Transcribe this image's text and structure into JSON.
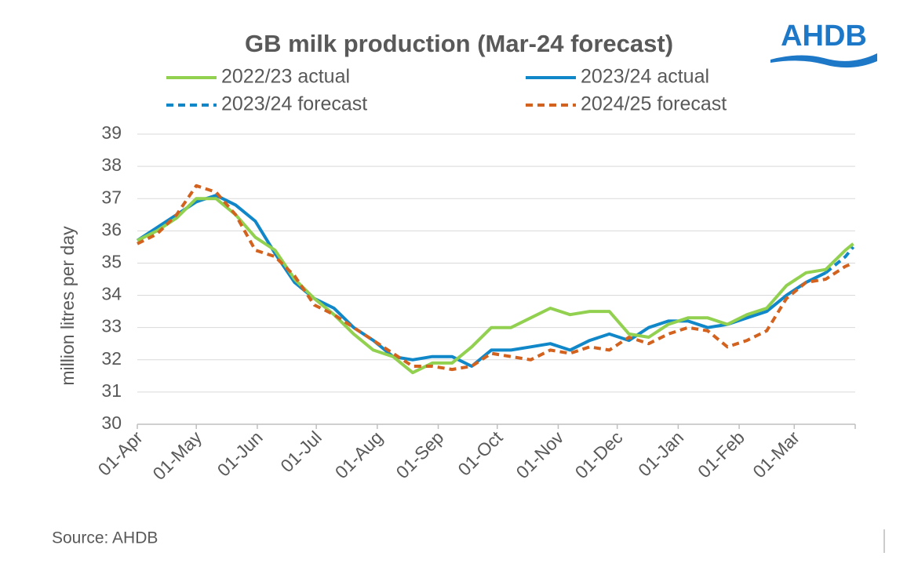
{
  "chart_data": {
    "type": "line",
    "title": "GB milk production (Mar-24 forecast)",
    "y_label": "million litres per day",
    "source": "Source: AHDB",
    "logo": "AHDB",
    "x": [
      0,
      10,
      20,
      30,
      40,
      50,
      60,
      70,
      80,
      90,
      100,
      110,
      120,
      130,
      140,
      150,
      160,
      170,
      180,
      190,
      200,
      210,
      220,
      230,
      240,
      250,
      260,
      270,
      280,
      290,
      300,
      310,
      320,
      330,
      340,
      350,
      360,
      364
    ],
    "xlim": [
      0,
      365
    ],
    "xticks": [
      {
        "value": 0,
        "label": "01-Apr"
      },
      {
        "value": 30,
        "label": "01-May"
      },
      {
        "value": 61,
        "label": "01-Jun"
      },
      {
        "value": 91,
        "label": "01-Jul"
      },
      {
        "value": 122,
        "label": "01-Aug"
      },
      {
        "value": 153,
        "label": "01-Sep"
      },
      {
        "value": 183,
        "label": "01-Oct"
      },
      {
        "value": 214,
        "label": "01-Nov"
      },
      {
        "value": 244,
        "label": "01-Dec"
      },
      {
        "value": 275,
        "label": "01-Jan"
      },
      {
        "value": 306,
        "label": "01-Feb"
      },
      {
        "value": 334,
        "label": "01-Mar"
      },
      365
    ],
    "ylim": [
      30,
      39
    ],
    "yticks": [
      30,
      31,
      32,
      33,
      34,
      35,
      36,
      37,
      38,
      39
    ],
    "grid": true,
    "series": [
      {
        "name": "2022/23 actual",
        "color": "#92d050",
        "style": "solid",
        "values": [
          35.7,
          36.0,
          36.4,
          37.0,
          37.0,
          36.5,
          35.8,
          35.4,
          34.5,
          33.9,
          33.4,
          32.8,
          32.3,
          32.1,
          31.6,
          31.9,
          31.9,
          32.4,
          33.0,
          33.0,
          33.3,
          33.6,
          33.4,
          33.5,
          33.5,
          32.8,
          32.7,
          33.1,
          33.3,
          33.3,
          33.1,
          33.4,
          33.6,
          34.3,
          34.7,
          34.8,
          35.4,
          35.6
        ]
      },
      {
        "name": "2023/24 actual",
        "color": "#0f87c8",
        "style": "solid",
        "values": [
          35.7,
          36.1,
          36.5,
          36.9,
          37.1,
          36.8,
          36.3,
          35.3,
          34.4,
          33.9,
          33.6,
          33.0,
          32.6,
          32.1,
          32.0,
          32.1,
          32.1,
          31.8,
          32.3,
          32.3,
          32.4,
          32.5,
          32.3,
          32.6,
          32.8,
          32.6,
          33.0,
          33.2,
          33.2,
          33.0,
          33.1,
          33.3,
          33.5,
          34.0,
          34.4,
          34.7,
          null,
          null
        ]
      },
      {
        "name": "2023/24 forecast",
        "color": "#0f87c8",
        "style": "dashed",
        "values": [
          null,
          null,
          null,
          null,
          null,
          null,
          null,
          null,
          null,
          null,
          null,
          null,
          null,
          null,
          null,
          null,
          null,
          null,
          null,
          null,
          null,
          null,
          null,
          null,
          null,
          null,
          null,
          null,
          null,
          null,
          null,
          null,
          null,
          null,
          null,
          34.7,
          35.2,
          35.5
        ]
      },
      {
        "name": "2024/25 forecast",
        "color": "#d3621e",
        "style": "dashed",
        "values": [
          35.6,
          35.9,
          36.5,
          37.4,
          37.2,
          36.5,
          35.4,
          35.2,
          34.6,
          33.7,
          33.4,
          33.0,
          32.6,
          32.2,
          31.8,
          31.8,
          31.7,
          31.8,
          32.2,
          32.1,
          32.0,
          32.3,
          32.2,
          32.4,
          32.3,
          32.7,
          32.5,
          32.8,
          33.0,
          32.9,
          32.4,
          32.6,
          32.9,
          33.9,
          34.4,
          34.5,
          34.9,
          35.0
        ]
      }
    ]
  }
}
